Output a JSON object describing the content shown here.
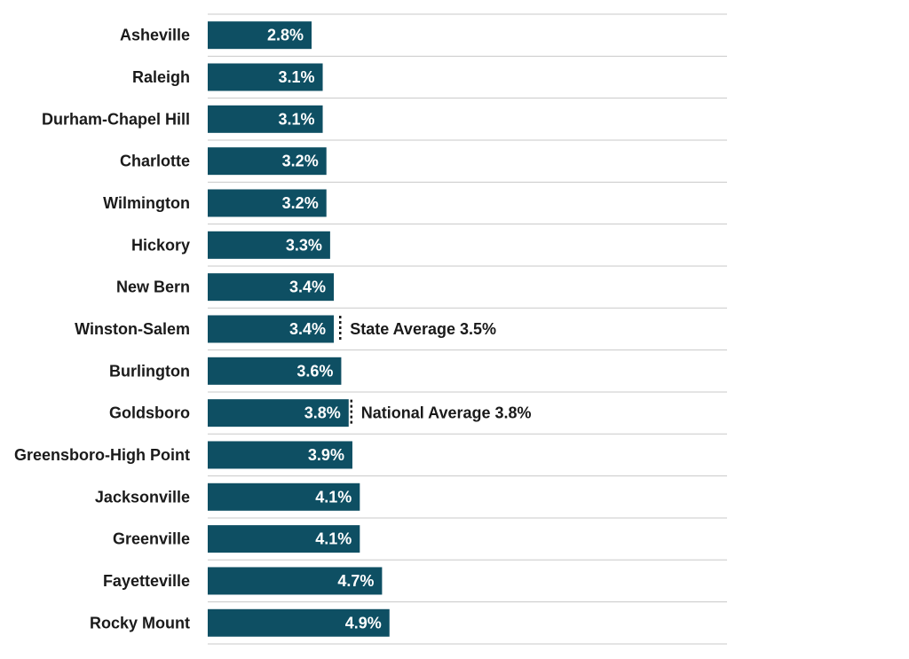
{
  "chart_data": {
    "type": "bar",
    "orientation": "horizontal",
    "categories": [
      "Asheville",
      "Raleigh",
      "Durham-Chapel Hill",
      "Charlotte",
      "Wilmington",
      "Hickory",
      "New Bern",
      "Winston-Salem",
      "Burlington",
      "Goldsboro",
      "Greensboro-High Point",
      "Jacksonville",
      "Greenville",
      "Fayetteville",
      "Rocky Mount"
    ],
    "values": [
      2.8,
      3.1,
      3.1,
      3.2,
      3.2,
      3.3,
      3.4,
      3.4,
      3.6,
      3.8,
      3.9,
      4.1,
      4.1,
      4.7,
      4.9
    ],
    "value_labels": [
      "2.8%",
      "3.1%",
      "3.1%",
      "3.2%",
      "3.2%",
      "3.3%",
      "3.4%",
      "3.4%",
      "3.6%",
      "3.8%",
      "3.9%",
      "4.1%",
      "4.1%",
      "4.7%",
      "4.9%"
    ],
    "xlim": [
      0,
      14
    ],
    "grid": "horizontal row separators",
    "bar_color": "#0e4f63",
    "reference_lines": [
      {
        "label": "State Average 3.5%",
        "value": 3.5,
        "row": "Winston-Salem"
      },
      {
        "label": "National Average 3.8%",
        "value": 3.8,
        "row": "Goldsboro"
      }
    ],
    "title": "",
    "xlabel": "",
    "ylabel": ""
  }
}
